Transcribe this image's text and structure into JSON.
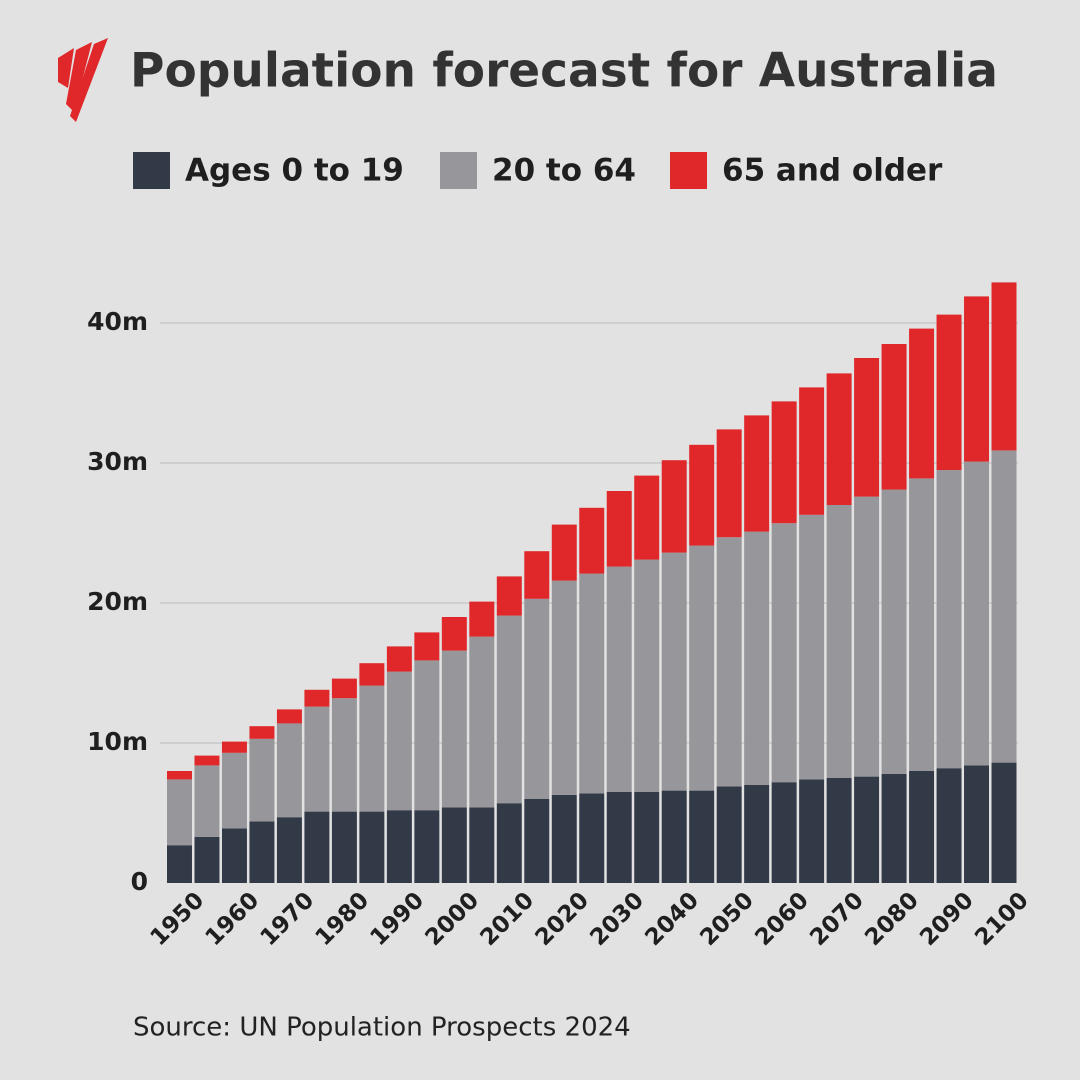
{
  "chart_data": {
    "type": "stacked-bar",
    "title": "Population forecast for Australia",
    "source": "Source: UN Population Prospects 2024",
    "categories": [
      "1950",
      null,
      "1960",
      null,
      "1970",
      null,
      "1980",
      null,
      "1990",
      null,
      "2000",
      null,
      "2010",
      null,
      "2020",
      null,
      "2030",
      null,
      "2040",
      null,
      "2050",
      null,
      "2060",
      null,
      "2070",
      null,
      "2080",
      null,
      "2090",
      null,
      "2100"
    ],
    "series": [
      {
        "name": "Ages 0 to 19",
        "color": "#333a47",
        "values": [
          2.7,
          3.3,
          3.9,
          4.4,
          4.7,
          5.1,
          5.1,
          5.1,
          5.2,
          5.2,
          5.4,
          5.4,
          5.7,
          6.0,
          6.3,
          6.4,
          6.5,
          6.5,
          6.6,
          6.6,
          6.9,
          7.0,
          7.2,
          7.4,
          7.5,
          7.6,
          7.8,
          8.0,
          8.2,
          8.4,
          8.6
        ]
      },
      {
        "name": "20 to 64",
        "color": "#97979b",
        "values": [
          4.7,
          5.1,
          5.4,
          5.9,
          6.7,
          7.5,
          8.1,
          9.0,
          9.9,
          10.7,
          11.2,
          12.2,
          13.4,
          14.3,
          15.3,
          15.7,
          16.1,
          16.6,
          17.0,
          17.5,
          17.8,
          18.1,
          18.5,
          18.9,
          19.5,
          20.0,
          20.3,
          20.9,
          21.3,
          21.7,
          22.3
        ]
      },
      {
        "name": "65 and older",
        "color": "#e0282a",
        "values": [
          0.6,
          0.7,
          0.8,
          0.9,
          1.0,
          1.2,
          1.4,
          1.6,
          1.8,
          2.0,
          2.4,
          2.5,
          2.8,
          3.4,
          4.0,
          4.7,
          5.4,
          6.0,
          6.6,
          7.2,
          7.7,
          8.3,
          8.7,
          9.1,
          9.4,
          9.9,
          10.4,
          10.7,
          11.1,
          11.8,
          12.0
        ]
      }
    ],
    "ylim": [
      0,
      43
    ],
    "yticks": [
      0,
      {
        "value": 10,
        "label": "10m"
      },
      {
        "value": 20,
        "label": "20m"
      },
      {
        "value": 30,
        "label": "30m"
      },
      {
        "value": 40,
        "label": "40m"
      }
    ],
    "grid": true
  }
}
